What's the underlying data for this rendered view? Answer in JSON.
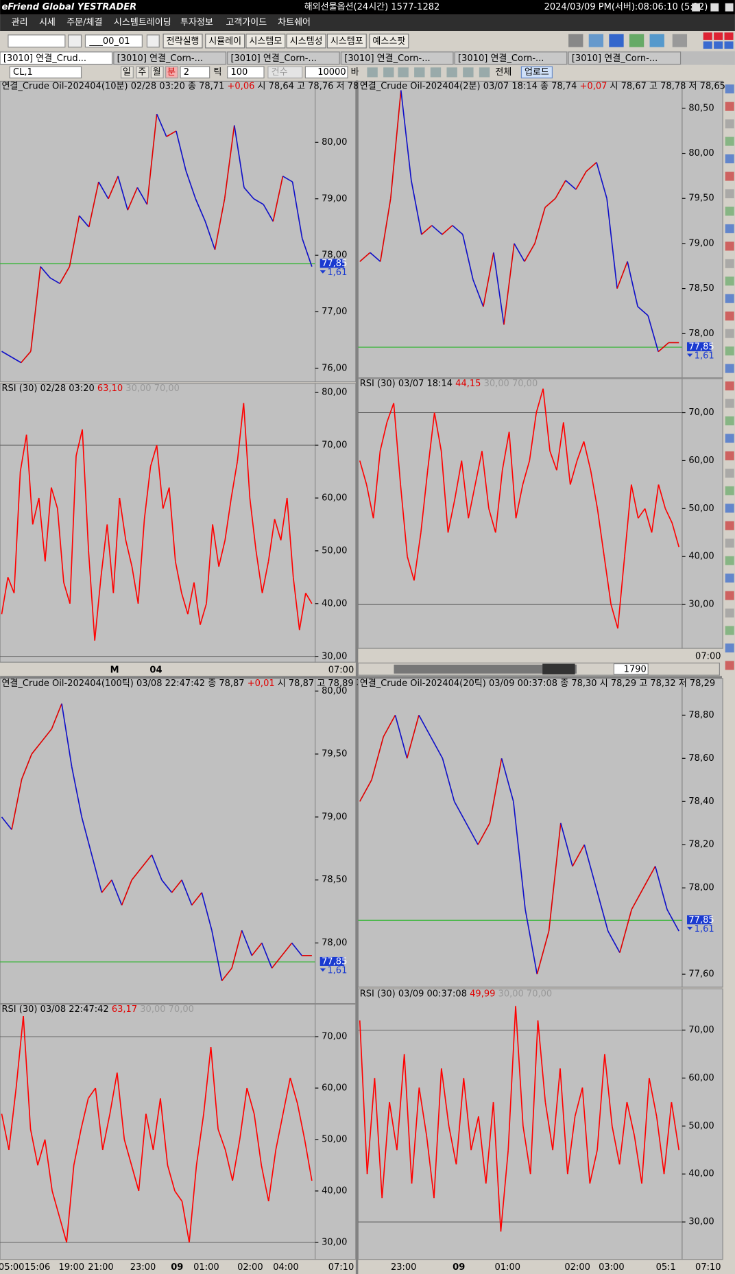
{
  "title_bar": {
    "logo": "eFriend Global YESTRADER",
    "title": "해외선물옵션(24시간) 1577-1282",
    "datetime": "2024/03/09  PM(서버):08:06:10 (5:12)"
  },
  "menu": [
    "관리",
    "시세",
    "주문/체결",
    "시스템트레이딩",
    "투자정보",
    "고객가이드",
    "차트쉐어"
  ],
  "toolbar": {
    "code": "___00_01",
    "buttons": [
      "전략실행",
      "시뮬레이",
      "시스템모",
      "시스템성",
      "시스템포",
      "예스스팟"
    ]
  },
  "tabs": [
    "[3010] 연결_Crud...",
    "[3010] 연결_Corn-...",
    "[3010] 연결_Corn-...",
    "[3010] 연결_Corn-...",
    "[3010] 연결_Corn-...",
    "[3010] 연결_Corn-..."
  ],
  "chart_toolbar": {
    "symbol": "CL,1",
    "periods": [
      "일",
      "주",
      "월",
      "분"
    ],
    "interval": "2",
    "tick": "틱",
    "count": "100",
    "count_label": "건수",
    "bars": "10000",
    "bar_unit": "바",
    "all": "전체",
    "upload": "업로드"
  },
  "panels": [
    {
      "price": {
        "header": [
          {
            "text": "연결_Crude Oil-202404(10분) 02/28 03:20  종 78,71 ",
            "color": "#000"
          },
          {
            "text": "+0,06",
            "color": "#e00000"
          },
          {
            "text": "  시 78,64  고 78,76  저 78,",
            "color": "#000"
          }
        ],
        "ylim": [
          75.76,
          81.08
        ],
        "yticks": [
          {
            "value": 80,
            "label": "80,00"
          },
          {
            "value": 79,
            "label": "79,00"
          },
          {
            "value": 78,
            "label": "78,00"
          },
          {
            "value": 77,
            "label": "77,00"
          },
          {
            "value": 76,
            "label": "76,00"
          }
        ],
        "values": [
          76.3,
          76.2,
          76.1,
          76.3,
          77.8,
          77.6,
          77.5,
          77.8,
          78.7,
          78.5,
          79.3,
          79.0,
          79.4,
          78.8,
          79.2,
          78.9,
          80.5,
          80.1,
          80.2,
          79.5,
          79.0,
          78.6,
          78.1,
          79.0,
          80.3,
          79.2,
          79.0,
          78.9,
          78.6,
          79.4,
          79.3,
          78.3,
          77.8
        ],
        "last": {
          "value": 77.85,
          "label": "77,85"
        },
        "change": "1,61"
      },
      "rsi": {
        "header": [
          {
            "text": "RSI  (30) 02/28 03:20 ",
            "color": "#000"
          },
          {
            "text": "63,10",
            "color": "#e00000"
          },
          {
            "text": " 30,00 70,00",
            "color": "#999"
          }
        ],
        "ylim": [
          28.9,
          81.7
        ],
        "yticks": [
          {
            "value": 80,
            "label": "80,00"
          },
          {
            "value": 70,
            "label": "70,00"
          },
          {
            "value": 60,
            "label": "60,00"
          },
          {
            "value": 50,
            "label": "50,00"
          },
          {
            "value": 40,
            "label": "40,00"
          },
          {
            "value": 30,
            "label": "30,00"
          }
        ],
        "levels": [
          30,
          70
        ],
        "values": [
          38,
          45,
          42,
          65,
          72,
          55,
          60,
          48,
          62,
          58,
          44,
          40,
          68,
          73,
          50,
          33,
          45,
          55,
          42,
          60,
          52,
          47,
          40,
          56,
          66,
          70,
          58,
          62,
          48,
          42,
          38,
          44,
          36,
          40,
          55,
          47,
          52,
          60,
          67,
          78,
          60,
          50,
          42,
          48,
          56,
          52,
          60,
          45,
          35,
          42,
          40
        ]
      },
      "x_labels": [
        "M",
        "04"
      ],
      "time_label": "07:00"
    },
    {
      "price": {
        "header": [
          {
            "text": "연결_Crude Oil-202404(2분) 03/07 18:14  종 78,74 ",
            "color": "#000"
          },
          {
            "text": "+0,07",
            "color": "#e00000"
          },
          {
            "text": "  시 78,67  고 78,78  저 78,65",
            "color": "#000"
          }
        ],
        "ylim": [
          77.51,
          80.8
        ],
        "yticks": [
          {
            "value": 80.5,
            "label": "80,50"
          },
          {
            "value": 80,
            "label": "80,00"
          },
          {
            "value": 79.5,
            "label": "79,50"
          },
          {
            "value": 79,
            "label": "79,00"
          },
          {
            "value": 78.5,
            "label": "78,50"
          },
          {
            "value": 78,
            "label": "78,00"
          }
        ],
        "values": [
          78.8,
          78.9,
          78.8,
          79.5,
          80.7,
          79.7,
          79.1,
          79.2,
          79.1,
          79.2,
          79.1,
          78.6,
          78.3,
          78.9,
          78.1,
          79.0,
          78.8,
          79.0,
          79.4,
          79.5,
          79.7,
          79.6,
          79.8,
          79.9,
          79.5,
          78.5,
          78.8,
          78.3,
          78.2,
          77.8,
          77.9,
          77.9
        ],
        "last": {
          "value": 77.85,
          "label": "77,85"
        },
        "change": "1,61"
      },
      "rsi": {
        "header": [
          {
            "text": "RSI  (30) 03/07 18:14 ",
            "color": "#000"
          },
          {
            "text": "44,15",
            "color": "#e00000"
          },
          {
            "text": " 30,00 70,00",
            "color": "#999"
          }
        ],
        "ylim": [
          20.85,
          77.1
        ],
        "yticks": [
          {
            "value": 70,
            "label": "70,00"
          },
          {
            "value": 60,
            "label": "60,00"
          },
          {
            "value": 50,
            "label": "50,00"
          },
          {
            "value": 40,
            "label": "40,00"
          },
          {
            "value": 30,
            "label": "30,00"
          }
        ],
        "levels": [
          30,
          70
        ],
        "values": [
          60,
          55,
          48,
          62,
          68,
          72,
          55,
          40,
          35,
          45,
          58,
          70,
          62,
          45,
          52,
          60,
          48,
          55,
          62,
          50,
          45,
          58,
          66,
          48,
          55,
          60,
          70,
          75,
          62,
          58,
          68,
          55,
          60,
          64,
          58,
          50,
          40,
          30,
          25,
          40,
          55,
          48,
          50,
          45,
          55,
          50,
          47,
          42
        ]
      },
      "x_labels": [],
      "time_label": "07:00",
      "scroll_count": "1790"
    },
    {
      "price": {
        "header": [
          {
            "text": "연결_Crude Oil-202404(100틱) 03/08 22:47:42  종 78,87 ",
            "color": "#000"
          },
          {
            "text": "+0,01",
            "color": "#e00000"
          },
          {
            "text": "  시 78,87  고 78,89  저",
            "color": "#000"
          }
        ],
        "ylim": [
          77.52,
          80.1
        ],
        "yticks": [
          {
            "value": 80,
            "label": "80,00"
          },
          {
            "value": 79.5,
            "label": "79,50"
          },
          {
            "value": 79,
            "label": "79,00"
          },
          {
            "value": 78.5,
            "label": "78,50"
          },
          {
            "value": 78,
            "label": "78,00"
          }
        ],
        "values": [
          79.0,
          78.9,
          79.3,
          79.5,
          79.6,
          79.7,
          79.9,
          79.4,
          79.0,
          78.7,
          78.4,
          78.5,
          78.3,
          78.5,
          78.6,
          78.7,
          78.5,
          78.4,
          78.5,
          78.3,
          78.4,
          78.1,
          77.7,
          77.8,
          78.1,
          77.9,
          78.0,
          77.8,
          77.9,
          78.0,
          77.9,
          77.9
        ],
        "last": {
          "value": 77.85,
          "label": "77,85"
        },
        "change": "1,61"
      },
      "rsi": {
        "header": [
          {
            "text": "RSI  (30) 03/08 22:47:42 ",
            "color": "#000"
          },
          {
            "text": "63,17",
            "color": "#e00000"
          },
          {
            "text": " 30,00 70,00",
            "color": "#999"
          }
        ],
        "ylim": [
          26.7,
          76.3
        ],
        "yticks": [
          {
            "value": 70,
            "label": "70,00"
          },
          {
            "value": 60,
            "label": "60,00"
          },
          {
            "value": 50,
            "label": "50,00"
          },
          {
            "value": 40,
            "label": "40,00"
          },
          {
            "value": 30,
            "label": "30,00"
          }
        ],
        "levels": [
          30,
          70
        ],
        "values": [
          55,
          48,
          60,
          74,
          52,
          45,
          50,
          40,
          35,
          30,
          45,
          52,
          58,
          60,
          48,
          55,
          63,
          50,
          45,
          40,
          55,
          48,
          58,
          45,
          40,
          38,
          30,
          45,
          55,
          68,
          52,
          48,
          42,
          50,
          60,
          55,
          45,
          38,
          48,
          55,
          62,
          57,
          50,
          42
        ]
      },
      "x_labels": [
        "05:00",
        "15:06",
        "19:00",
        "21:00",
        "23:00",
        "09",
        "01:00",
        "02:00",
        "04:00"
      ],
      "time_label": "07:10"
    },
    {
      "price": {
        "header": [
          {
            "text": "연결_Crude Oil-202404(20틱) 03/09 00:37:08  종 78,30",
            "color": "#000"
          },
          {
            "text": "  시 78,29  고 78,32  저 78,29",
            "color": "#000"
          }
        ],
        "ylim": [
          77.54,
          78.97
        ],
        "yticks": [
          {
            "value": 78.8,
            "label": "78,80"
          },
          {
            "value": 78.6,
            "label": "78,60"
          },
          {
            "value": 78.4,
            "label": "78,40"
          },
          {
            "value": 78.2,
            "label": "78,20"
          },
          {
            "value": 78,
            "label": "78,00"
          },
          {
            "value": 77.6,
            "label": "77,60"
          }
        ],
        "values": [
          78.4,
          78.5,
          78.7,
          78.8,
          78.6,
          78.8,
          78.7,
          78.6,
          78.4,
          78.3,
          78.2,
          78.3,
          78.6,
          78.4,
          77.9,
          77.6,
          77.8,
          78.3,
          78.1,
          78.2,
          78.0,
          77.8,
          77.7,
          77.9,
          78.0,
          78.1,
          77.9,
          77.8
        ],
        "last": {
          "value": 77.85,
          "label": "77,85"
        },
        "change": "1,61"
      },
      "rsi": {
        "header": [
          {
            "text": "RSI  (30) 03/09 00:37:08 ",
            "color": "#000"
          },
          {
            "text": "49,99",
            "color": "#e00000"
          },
          {
            "text": " 30,00 70,00",
            "color": "#999"
          }
        ],
        "ylim": [
          22.2,
          78.6
        ],
        "yticks": [
          {
            "value": 70,
            "label": "70,00"
          },
          {
            "value": 60,
            "label": "60,00"
          },
          {
            "value": 50,
            "label": "50,00"
          },
          {
            "value": 40,
            "label": "40,00"
          },
          {
            "value": 30,
            "label": "30,00"
          }
        ],
        "levels": [
          30,
          70
        ],
        "values": [
          72,
          40,
          60,
          35,
          55,
          45,
          65,
          38,
          58,
          48,
          35,
          62,
          50,
          42,
          60,
          45,
          52,
          38,
          55,
          28,
          45,
          75,
          50,
          40,
          72,
          55,
          45,
          62,
          40,
          52,
          58,
          38,
          45,
          65,
          50,
          42,
          55,
          48,
          38,
          60,
          52,
          40,
          55,
          45
        ]
      },
      "x_labels": [
        "23:00",
        "09",
        "01:00",
        "02:00",
        "03:00",
        "05:1"
      ],
      "time_label": "07:10"
    }
  ]
}
